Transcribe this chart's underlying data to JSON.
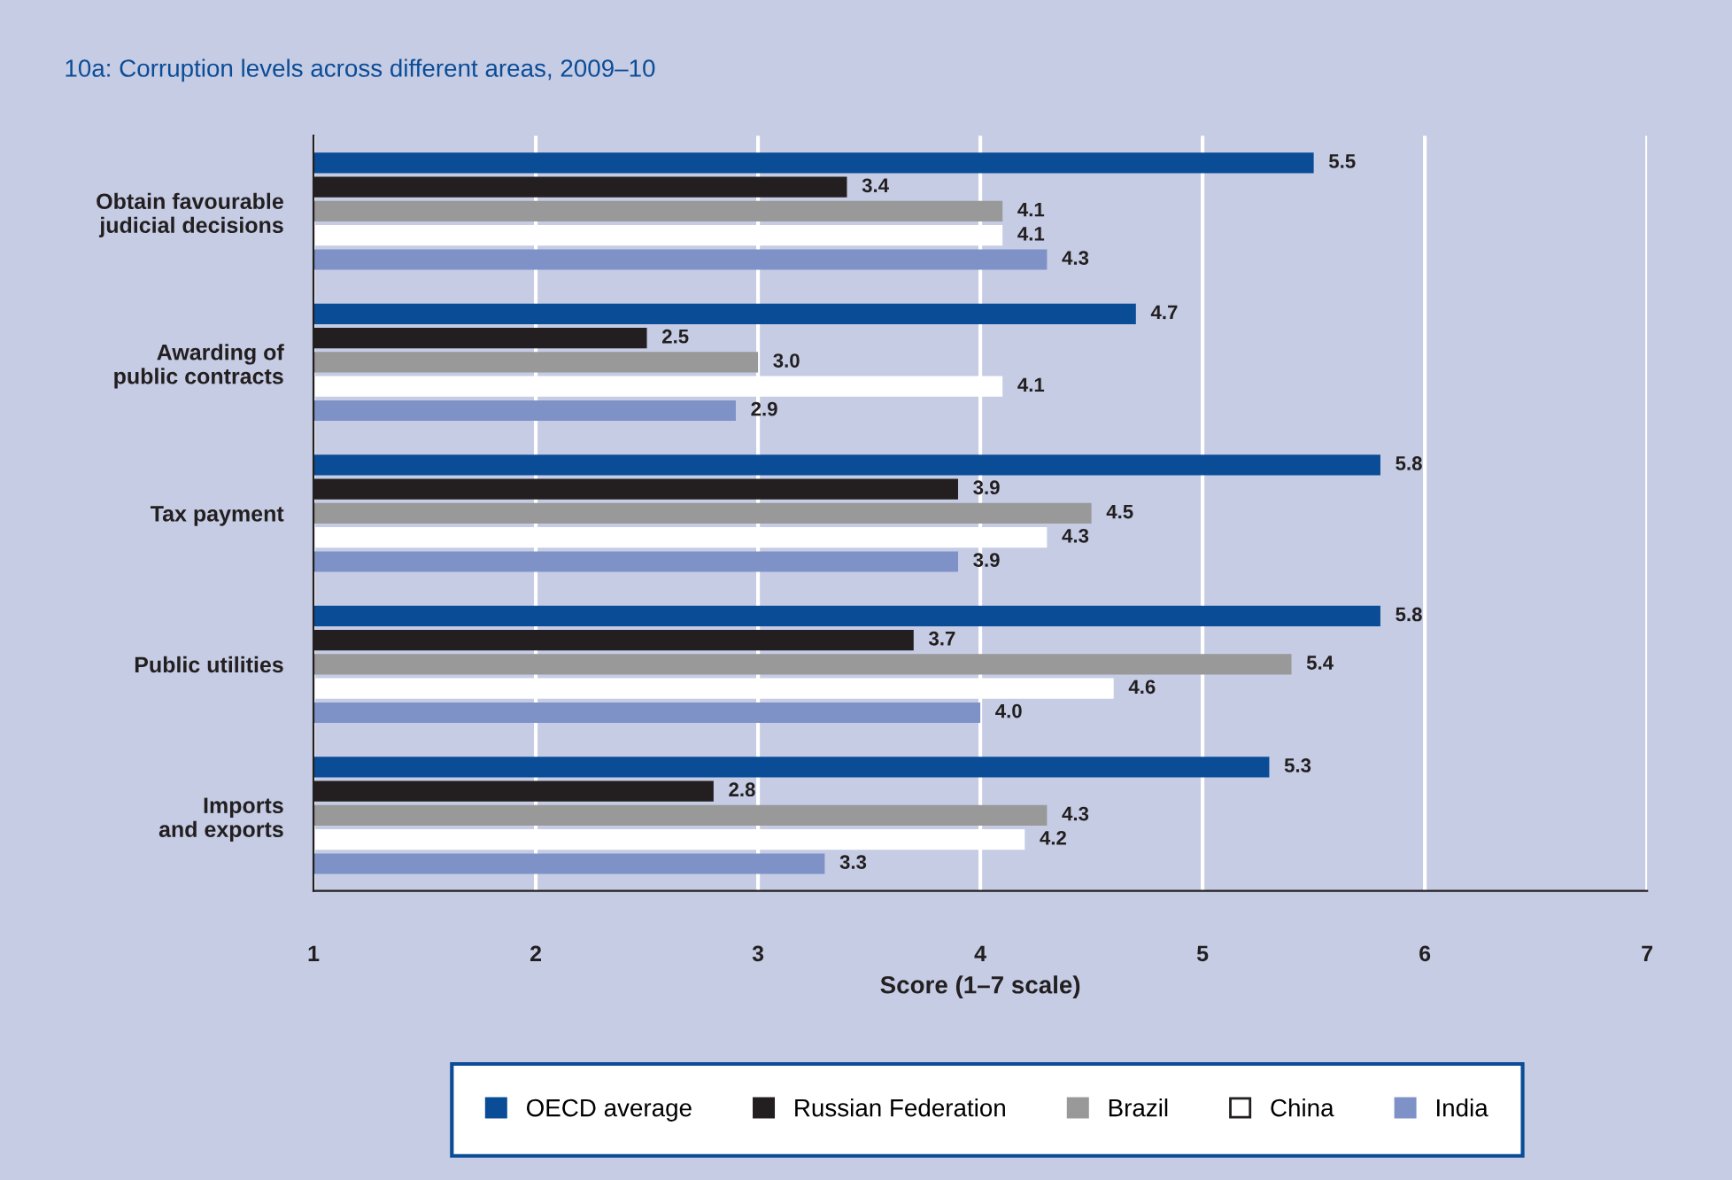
{
  "chart_data": {
    "type": "bar",
    "orientation": "horizontal",
    "title": "10a: Corruption levels across different areas, 2009–10",
    "xlabel": "Score (1–7 scale)",
    "categories": [
      "Obtain favourable\njudicial decisions",
      "Awarding of\npublic contracts",
      "Tax payment",
      "Public utilities",
      "Imports\nand exports"
    ],
    "series": [
      {
        "name": "OECD average",
        "color": "#0b4c97",
        "values": [
          5.5,
          4.7,
          5.8,
          5.8,
          5.3
        ],
        "value_labels": [
          "5.5",
          "4.7",
          "5.8",
          "5.8",
          "5.3"
        ]
      },
      {
        "name": "Russian Federation",
        "color": "#231f20",
        "values": [
          3.4,
          2.5,
          3.9,
          3.7,
          2.8
        ],
        "value_labels": [
          "3.4",
          "2.5",
          "3.9",
          "3.7",
          "2.8"
        ]
      },
      {
        "name": "Brazil",
        "color": "#999999",
        "values": [
          4.1,
          3.0,
          4.5,
          5.4,
          4.3
        ],
        "value_labels": [
          "4.1",
          "3.0",
          "4.5",
          "5.4",
          "4.3"
        ]
      },
      {
        "name": "China",
        "color": "#ffffff",
        "values": [
          4.1,
          4.1,
          4.3,
          4.6,
          4.2
        ],
        "value_labels": [
          "4.1",
          "4.1",
          "4.3",
          "4.6",
          "4.2"
        ]
      },
      {
        "name": "India",
        "color": "#7f92c7",
        "values": [
          4.3,
          2.9,
          3.9,
          4.0,
          3.3
        ],
        "value_labels": [
          "4.3",
          "2.9",
          "3.9",
          "4.0",
          "3.3"
        ]
      }
    ],
    "xlim": [
      1,
      7
    ],
    "xticks": [
      1,
      2,
      3,
      4,
      5,
      6,
      7
    ],
    "grid": "x",
    "legend": "bottom"
  }
}
